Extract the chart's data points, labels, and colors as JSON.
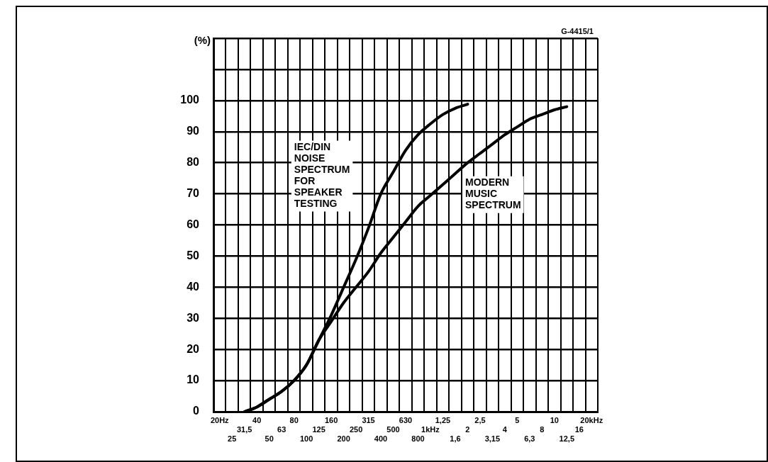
{
  "chart_data": {
    "type": "line",
    "ylabel": "(%)",
    "categories": [
      "20Hz",
      "25",
      "31,5",
      "40",
      "50",
      "63",
      "80",
      "100",
      "125",
      "160",
      "200",
      "250",
      "315",
      "400",
      "500",
      "630",
      "800",
      "1kHz",
      "1,25",
      "1,6",
      "2",
      "2,5",
      "3,15",
      "4",
      "5",
      "6,3",
      "8",
      "10",
      "12,5",
      "16",
      "20kHz"
    ],
    "series": [
      {
        "name": "IEC/DIN NOISE SPECTRUM FOR SPEAKER TESTING",
        "color": "#000000",
        "values": [
          null,
          null,
          0,
          1.5,
          4,
          6.5,
          10,
          15,
          23,
          31,
          40,
          49,
          59,
          70,
          77,
          84,
          89,
          92.5,
          95.5,
          97.5,
          98.8,
          null,
          null,
          null,
          null,
          null,
          null,
          null,
          null,
          null,
          null
        ]
      },
      {
        "name": "MODERN MUSIC SPECTRUM",
        "color": "#000000",
        "values": [
          null,
          null,
          0,
          1.5,
          4,
          6.5,
          10,
          15,
          23,
          29,
          35,
          40,
          45,
          51,
          56,
          61,
          66,
          69.5,
          73,
          76.5,
          80,
          83,
          86,
          89,
          91.5,
          94,
          95.5,
          97,
          98,
          null,
          null
        ]
      }
    ],
    "ylim": [
      0,
      120
    ],
    "yticks": [
      0,
      10,
      20,
      30,
      40,
      50,
      60,
      70,
      80,
      90,
      100,
      {
        "value": 110,
        "label": null
      },
      {
        "value": 120,
        "label": null
      }
    ],
    "grid": true,
    "marker": "none",
    "line_style": "solid",
    "annotations": [
      "G-4415/1"
    ]
  }
}
